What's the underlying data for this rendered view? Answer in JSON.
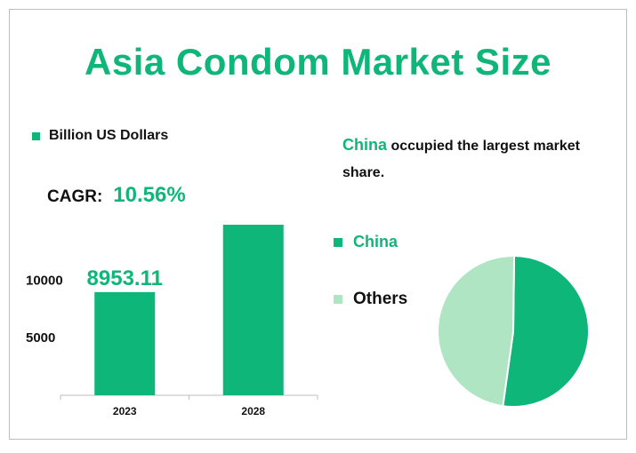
{
  "colors": {
    "primary": "#0fb67a",
    "secondary": "#afe5c3",
    "axis": "#bfbfbf",
    "text": "#111111"
  },
  "title": "Asia Condom Market Size",
  "legend": {
    "label": "Billion US Dollars"
  },
  "cagr": {
    "label": "CAGR:",
    "value": "10.56%"
  },
  "share_note": {
    "lead": "China",
    "text": " occupied the largest market share."
  },
  "chart_data": [
    {
      "type": "bar",
      "title": "",
      "categories": [
        "2023",
        "2028"
      ],
      "series": [
        {
          "name": "Billion US Dollars",
          "values": [
            8953.11,
            14800
          ]
        }
      ],
      "data_labels": [
        "8953.11",
        ""
      ],
      "y_ticks": [
        5000,
        10000
      ],
      "ylim": [
        0,
        17500
      ],
      "grid": false,
      "legend_position": "top-left"
    },
    {
      "type": "pie",
      "title": "",
      "labels": [
        "China",
        "Others"
      ],
      "values": [
        52,
        48
      ],
      "colors": [
        "#0fb67a",
        "#afe5c3"
      ],
      "legend_position": "left"
    }
  ]
}
